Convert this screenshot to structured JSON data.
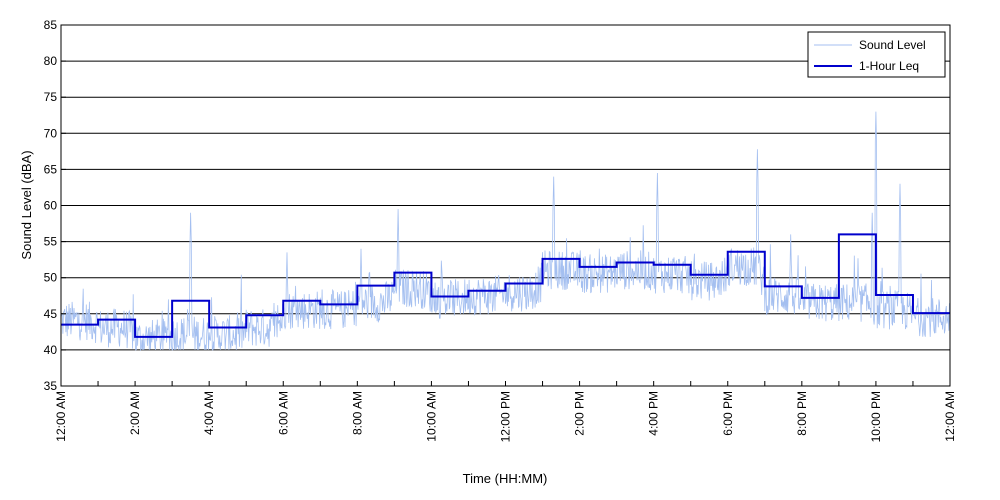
{
  "chart_data": {
    "type": "line",
    "title": "",
    "xlabel": "Time (HH:MM)",
    "ylabel": "Sound Level (dBA)",
    "ylim": [
      35,
      85
    ],
    "yticks": [
      35,
      40,
      45,
      50,
      55,
      60,
      65,
      70,
      75,
      80,
      85
    ],
    "xlim_hours": [
      0,
      24
    ],
    "x_tick_labels": [
      "12:00 AM",
      "2:00 AM",
      "4:00 AM",
      "6:00 AM",
      "8:00 AM",
      "10:00 AM",
      "12:00 PM",
      "2:00 PM",
      "4:00 PM",
      "6:00 PM",
      "8:00 PM",
      "10:00 PM",
      "12:00 AM"
    ],
    "grid": "horizontal",
    "legend_position": "top-right",
    "colors": {
      "sound_level": "#a4bff0",
      "leq": "#0000cc"
    },
    "series": [
      {
        "name": "Sound Level",
        "style": "thin-line",
        "hourly_base": [
          43.5,
          42.5,
          41.0,
          41.5,
          41.5,
          42.5,
          45.0,
          45.0,
          46.0,
          48.0,
          46.5,
          47.0,
          47.5,
          50.5,
          50.0,
          50.5,
          50.0,
          49.0,
          51.0,
          47.0,
          46.0,
          46.0,
          45.0,
          44.0
        ],
        "peaks": [
          {
            "x": 3.5,
            "y": 59.0
          },
          {
            "x": 13.3,
            "y": 64.0
          },
          {
            "x": 16.1,
            "y": 64.5
          },
          {
            "x": 18.8,
            "y": 67.8
          },
          {
            "x": 22.0,
            "y": 73.0
          },
          {
            "x": 22.65,
            "y": 63.0
          },
          {
            "x": 9.1,
            "y": 59.5
          },
          {
            "x": 8.1,
            "y": 54.0
          },
          {
            "x": 6.1,
            "y": 53.5
          },
          {
            "x": 2.9,
            "y": 47.0
          },
          {
            "x": 21.9,
            "y": 59.0
          },
          {
            "x": 19.7,
            "y": 56.0
          }
        ]
      },
      {
        "name": "1-Hour Leq",
        "style": "step",
        "hourly_values": [
          43.5,
          44.2,
          41.8,
          46.8,
          43.1,
          44.8,
          46.8,
          46.3,
          48.9,
          50.7,
          47.4,
          48.2,
          49.2,
          52.6,
          51.5,
          52.1,
          51.8,
          50.4,
          53.6,
          48.8,
          47.2,
          56.0,
          47.6,
          45.1
        ]
      }
    ]
  }
}
